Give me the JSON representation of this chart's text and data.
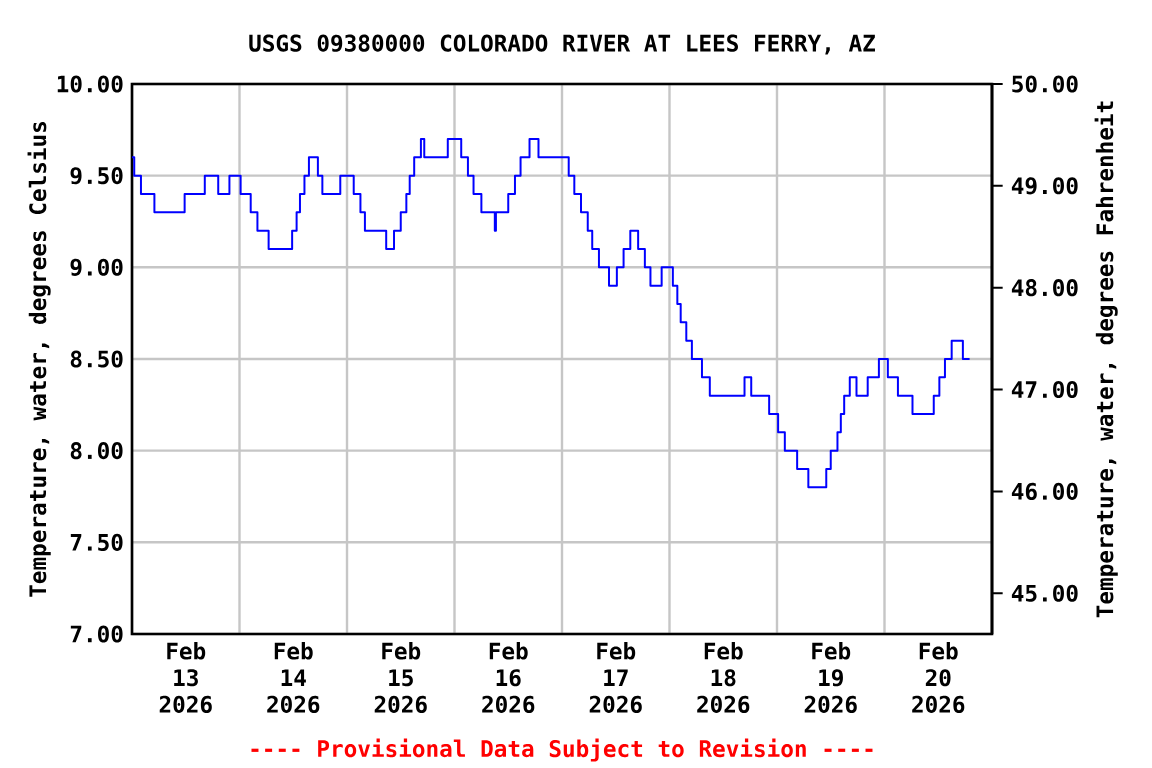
{
  "chart_data": {
    "type": "step",
    "title": "USGS 09380000 COLORADO RIVER AT LEES FERRY, AZ",
    "ylabel": "Temperature, water, degrees Celsius",
    "y2label": "Temperature, water, degrees Fahrenheit",
    "annotations": [
      "---- Provisional Data Subject to Revision ----"
    ],
    "color": "#0000ff",
    "grid": true,
    "x": [
      "2026-02-13T00:00",
      "2026-02-13T00:30",
      "2026-02-13T02:00",
      "2026-02-13T05:00",
      "2026-02-13T11:45",
      "2026-02-13T16:15",
      "2026-02-13T19:15",
      "2026-02-13T21:45",
      "2026-02-14T00:15",
      "2026-02-14T02:30",
      "2026-02-14T04:00",
      "2026-02-14T06:30",
      "2026-02-14T11:45",
      "2026-02-14T12:45",
      "2026-02-14T13:30",
      "2026-02-14T14:30",
      "2026-02-14T15:30",
      "2026-02-14T17:30",
      "2026-02-14T18:30",
      "2026-02-14T22:30",
      "2026-02-15T01:30",
      "2026-02-15T03:00",
      "2026-02-15T04:00",
      "2026-02-15T08:45",
      "2026-02-15T10:30",
      "2026-02-15T12:00",
      "2026-02-15T13:15",
      "2026-02-15T14:00",
      "2026-02-15T15:00",
      "2026-02-15T16:30",
      "2026-02-15T17:15",
      "2026-02-15T22:30",
      "2026-02-16T01:30",
      "2026-02-16T03:00",
      "2026-02-16T04:15",
      "2026-02-16T06:00",
      "2026-02-16T09:00",
      "2026-02-16T09:15",
      "2026-02-16T12:00",
      "2026-02-16T13:30",
      "2026-02-16T14:45",
      "2026-02-16T16:45",
      "2026-02-16T18:45",
      "2026-02-17T01:30",
      "2026-02-17T02:45",
      "2026-02-17T04:15",
      "2026-02-17T05:45",
      "2026-02-17T06:45",
      "2026-02-17T08:15",
      "2026-02-17T10:30",
      "2026-02-17T12:15",
      "2026-02-17T13:45",
      "2026-02-17T15:15",
      "2026-02-17T17:00",
      "2026-02-17T18:30",
      "2026-02-17T19:45",
      "2026-02-17T22:15",
      "2026-02-18T00:45",
      "2026-02-18T01:45",
      "2026-02-18T02:30",
      "2026-02-18T03:45",
      "2026-02-18T05:00",
      "2026-02-18T07:15",
      "2026-02-18T09:00",
      "2026-02-18T16:45",
      "2026-02-18T18:15",
      "2026-02-18T22:15",
      "2026-02-19T00:15",
      "2026-02-19T01:45",
      "2026-02-19T04:30",
      "2026-02-19T07:00",
      "2026-02-19T11:00",
      "2026-02-19T12:00",
      "2026-02-19T13:30",
      "2026-02-19T14:15",
      "2026-02-19T15:00",
      "2026-02-19T16:15",
      "2026-02-19T17:45",
      "2026-02-19T20:15",
      "2026-02-19T22:45",
      "2026-02-20T00:45",
      "2026-02-20T03:00",
      "2026-02-20T06:15",
      "2026-02-20T11:00",
      "2026-02-20T12:15",
      "2026-02-20T13:30",
      "2026-02-20T15:00",
      "2026-02-20T17:30",
      "2026-02-20T19:00"
    ],
    "values": [
      9.6,
      9.5,
      9.4,
      9.3,
      9.4,
      9.5,
      9.4,
      9.5,
      9.4,
      9.3,
      9.2,
      9.1,
      9.2,
      9.3,
      9.4,
      9.5,
      9.6,
      9.5,
      9.4,
      9.5,
      9.4,
      9.3,
      9.2,
      9.1,
      9.2,
      9.3,
      9.4,
      9.5,
      9.6,
      9.7,
      9.6,
      9.7,
      9.6,
      9.5,
      9.4,
      9.3,
      9.2,
      9.3,
      9.4,
      9.5,
      9.6,
      9.7,
      9.6,
      9.5,
      9.4,
      9.3,
      9.2,
      9.1,
      9.0,
      8.9,
      9.0,
      9.1,
      9.2,
      9.1,
      9.0,
      8.9,
      9.0,
      8.9,
      8.8,
      8.7,
      8.6,
      8.5,
      8.4,
      8.3,
      8.4,
      8.3,
      8.2,
      8.1,
      8.0,
      7.9,
      7.8,
      7.9,
      8.0,
      8.1,
      8.2,
      8.3,
      8.4,
      8.3,
      8.4,
      8.5,
      8.4,
      8.3,
      8.2,
      8.3,
      8.4,
      8.5,
      8.6,
      8.5,
      8.5
    ],
    "xlim": [
      "2026-02-13T00:00",
      "2026-02-21T00:00"
    ],
    "xticks": [
      {
        "value": "2026-02-13T12:00",
        "label": "Feb 13 2026"
      },
      {
        "value": "2026-02-14T12:00",
        "label": "Feb 14 2026"
      },
      {
        "value": "2026-02-15T12:00",
        "label": "Feb 15 2026"
      },
      {
        "value": "2026-02-16T12:00",
        "label": "Feb 16 2026"
      },
      {
        "value": "2026-02-17T12:00",
        "label": "Feb 17 2026"
      },
      {
        "value": "2026-02-18T12:00",
        "label": "Feb 18 2026"
      },
      {
        "value": "2026-02-19T12:00",
        "label": "Feb 19 2026"
      },
      {
        "value": "2026-02-20T12:00",
        "label": "Feb 20 2026"
      },
      {
        "value": "2026-02-14T00:00",
        "label": null
      },
      {
        "value": "2026-02-15T00:00",
        "label": null
      },
      {
        "value": "2026-02-16T00:00",
        "label": null
      },
      {
        "value": "2026-02-17T00:00",
        "label": null
      },
      {
        "value": "2026-02-18T00:00",
        "label": null
      },
      {
        "value": "2026-02-19T00:00",
        "label": null
      },
      {
        "value": "2026-02-20T00:00",
        "label": null
      }
    ],
    "ylim": [
      7,
      10
    ],
    "yticks": [
      {
        "value": 7,
        "label": "7.00"
      },
      {
        "value": 7.5,
        "label": "7.50"
      },
      {
        "value": 8,
        "label": "8.00"
      },
      {
        "value": 8.5,
        "label": "8.50"
      },
      {
        "value": 9,
        "label": "9.00"
      },
      {
        "value": 9.5,
        "label": "9.50"
      },
      {
        "value": 10,
        "label": "10.00"
      }
    ],
    "y2lim": [
      44.6,
      50
    ],
    "y2ticks": [
      {
        "value": 45,
        "label": "45.00"
      },
      {
        "value": 46,
        "label": "46.00"
      },
      {
        "value": 47,
        "label": "47.00"
      },
      {
        "value": 48,
        "label": "48.00"
      },
      {
        "value": 49,
        "label": "49.00"
      },
      {
        "value": 50,
        "label": "50.00"
      }
    ]
  }
}
